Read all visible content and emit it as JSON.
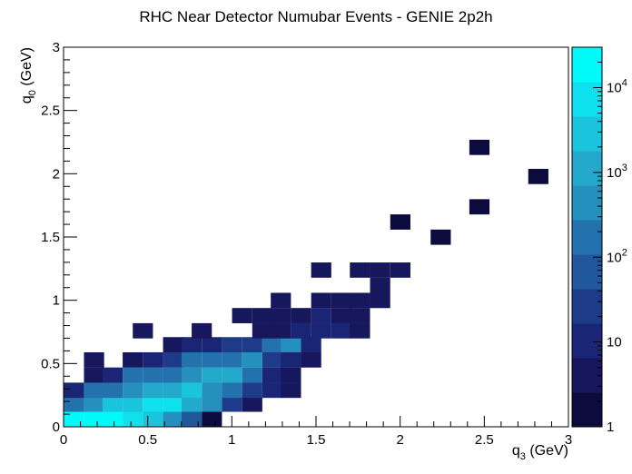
{
  "chart_data": {
    "type": "heatmap",
    "title": "RHC Near Detector Numubar Events - GENIE 2p2h",
    "xlabel": {
      "main": "q",
      "sub": "3",
      "unit": " (GeV)"
    },
    "ylabel": {
      "main": "q",
      "sub": "0",
      "unit": " (GeV)"
    },
    "xlim": [
      0,
      3
    ],
    "ylim": [
      0,
      3
    ],
    "bin_width": [
      0.1176,
      0.1176
    ],
    "grid": false,
    "x_ticks": [
      {
        "value": 0,
        "label": "0"
      },
      {
        "value": 0.5,
        "label": "0.5"
      },
      {
        "value": 1,
        "label": "1"
      },
      {
        "value": 1.5,
        "label": "1.5"
      },
      {
        "value": 2,
        "label": "2"
      },
      {
        "value": 2.5,
        "label": "2.5"
      },
      {
        "value": 3,
        "label": "3"
      }
    ],
    "y_ticks": [
      {
        "value": 0,
        "label": "0"
      },
      {
        "value": 0.5,
        "label": "0.5"
      },
      {
        "value": 1,
        "label": "1"
      },
      {
        "value": 1.5,
        "label": "1.5"
      },
      {
        "value": 2,
        "label": "2"
      },
      {
        "value": 2.5,
        "label": "2.5"
      },
      {
        "value": 3,
        "label": "3"
      }
    ],
    "colorbar": {
      "scale": "log",
      "range": [
        1,
        30000
      ],
      "ticks": [
        {
          "value": 1,
          "base": "1",
          "exp": ""
        },
        {
          "value": 10,
          "base": "10",
          "exp": ""
        },
        {
          "value": 100,
          "base": "10",
          "exp": "2"
        },
        {
          "value": 1000,
          "base": "10",
          "exp": "3"
        },
        {
          "value": 10000,
          "base": "10",
          "exp": "4"
        }
      ],
      "colors": [
        "#0b0b3d",
        "#17175d",
        "#1a2576",
        "#1e3b8a",
        "#21579c",
        "#2372ad",
        "#2590be",
        "#22a9cc",
        "#1ac4dd",
        "#0fe0ee",
        "#00fafa"
      ]
    },
    "cells": [
      {
        "x": 0.06,
        "y": 0.06,
        "v": 30000
      },
      {
        "x": 0.18,
        "y": 0.06,
        "v": 12000
      },
      {
        "x": 0.29,
        "y": 0.06,
        "v": 12000
      },
      {
        "x": 0.41,
        "y": 0.06,
        "v": 10000
      },
      {
        "x": 0.53,
        "y": 0.06,
        "v": 2500
      },
      {
        "x": 0.65,
        "y": 0.06,
        "v": 600
      },
      {
        "x": 0.76,
        "y": 0.06,
        "v": 100
      },
      {
        "x": 0.88,
        "y": 0.06,
        "v": 2
      },
      {
        "x": 0.06,
        "y": 0.18,
        "v": 200
      },
      {
        "x": 0.18,
        "y": 0.18,
        "v": 600
      },
      {
        "x": 0.29,
        "y": 0.18,
        "v": 2000
      },
      {
        "x": 0.41,
        "y": 0.18,
        "v": 3000
      },
      {
        "x": 0.53,
        "y": 0.18,
        "v": 6000
      },
      {
        "x": 0.65,
        "y": 0.18,
        "v": 5000
      },
      {
        "x": 0.76,
        "y": 0.18,
        "v": 1500
      },
      {
        "x": 0.88,
        "y": 0.18,
        "v": 300
      },
      {
        "x": 1.0,
        "y": 0.18,
        "v": 20
      },
      {
        "x": 1.12,
        "y": 0.18,
        "v": 3
      },
      {
        "x": 0.06,
        "y": 0.29,
        "v": 10
      },
      {
        "x": 0.18,
        "y": 0.29,
        "v": 120
      },
      {
        "x": 0.29,
        "y": 0.29,
        "v": 250
      },
      {
        "x": 0.41,
        "y": 0.29,
        "v": 500
      },
      {
        "x": 0.53,
        "y": 0.29,
        "v": 1200
      },
      {
        "x": 0.65,
        "y": 0.29,
        "v": 1200
      },
      {
        "x": 0.76,
        "y": 0.29,
        "v": 2200
      },
      {
        "x": 0.88,
        "y": 0.29,
        "v": 400
      },
      {
        "x": 1.0,
        "y": 0.29,
        "v": 150
      },
      {
        "x": 1.12,
        "y": 0.29,
        "v": 40
      },
      {
        "x": 1.24,
        "y": 0.29,
        "v": 10
      },
      {
        "x": 1.35,
        "y": 0.29,
        "v": 5
      },
      {
        "x": 0.18,
        "y": 0.41,
        "v": 5
      },
      {
        "x": 0.29,
        "y": 0.41,
        "v": 12
      },
      {
        "x": 0.41,
        "y": 0.41,
        "v": 120
      },
      {
        "x": 0.53,
        "y": 0.41,
        "v": 250
      },
      {
        "x": 0.65,
        "y": 0.41,
        "v": 250
      },
      {
        "x": 0.76,
        "y": 0.41,
        "v": 400
      },
      {
        "x": 0.88,
        "y": 0.41,
        "v": 1500
      },
      {
        "x": 1.0,
        "y": 0.41,
        "v": 1500
      },
      {
        "x": 1.12,
        "y": 0.41,
        "v": 250
      },
      {
        "x": 1.24,
        "y": 0.41,
        "v": 12
      },
      {
        "x": 1.35,
        "y": 0.41,
        "v": 5
      },
      {
        "x": 0.18,
        "y": 0.53,
        "v": 5
      },
      {
        "x": 0.41,
        "y": 0.53,
        "v": 5
      },
      {
        "x": 0.53,
        "y": 0.53,
        "v": 12
      },
      {
        "x": 0.65,
        "y": 0.53,
        "v": 40
      },
      {
        "x": 0.76,
        "y": 0.53,
        "v": 120
      },
      {
        "x": 0.88,
        "y": 0.53,
        "v": 250
      },
      {
        "x": 1.0,
        "y": 0.53,
        "v": 250
      },
      {
        "x": 1.12,
        "y": 0.53,
        "v": 400
      },
      {
        "x": 1.24,
        "y": 0.53,
        "v": 40
      },
      {
        "x": 1.35,
        "y": 0.53,
        "v": 12
      },
      {
        "x": 1.47,
        "y": 0.53,
        "v": 5
      },
      {
        "x": 0.65,
        "y": 0.65,
        "v": 5
      },
      {
        "x": 0.76,
        "y": 0.65,
        "v": 12
      },
      {
        "x": 0.88,
        "y": 0.65,
        "v": 12
      },
      {
        "x": 1.0,
        "y": 0.65,
        "v": 40
      },
      {
        "x": 1.12,
        "y": 0.65,
        "v": 40
      },
      {
        "x": 1.24,
        "y": 0.65,
        "v": 250
      },
      {
        "x": 1.35,
        "y": 0.65,
        "v": 400
      },
      {
        "x": 1.47,
        "y": 0.65,
        "v": 12
      },
      {
        "x": 0.47,
        "y": 0.76,
        "v": 3
      },
      {
        "x": 0.82,
        "y": 0.76,
        "v": 3
      },
      {
        "x": 1.18,
        "y": 0.76,
        "v": 5
      },
      {
        "x": 1.29,
        "y": 0.76,
        "v": 5
      },
      {
        "x": 1.41,
        "y": 0.76,
        "v": 12
      },
      {
        "x": 1.53,
        "y": 0.76,
        "v": 12
      },
      {
        "x": 1.65,
        "y": 0.76,
        "v": 12
      },
      {
        "x": 1.76,
        "y": 0.76,
        "v": 5
      },
      {
        "x": 1.06,
        "y": 0.88,
        "v": 5
      },
      {
        "x": 1.18,
        "y": 0.88,
        "v": 5
      },
      {
        "x": 1.29,
        "y": 0.88,
        "v": 5
      },
      {
        "x": 1.41,
        "y": 0.88,
        "v": 5
      },
      {
        "x": 1.53,
        "y": 0.88,
        "v": 12
      },
      {
        "x": 1.65,
        "y": 0.88,
        "v": 5
      },
      {
        "x": 1.76,
        "y": 0.88,
        "v": 5
      },
      {
        "x": 1.29,
        "y": 1.0,
        "v": 3
      },
      {
        "x": 1.53,
        "y": 1.0,
        "v": 5
      },
      {
        "x": 1.65,
        "y": 1.0,
        "v": 5
      },
      {
        "x": 1.76,
        "y": 1.0,
        "v": 5
      },
      {
        "x": 1.88,
        "y": 1.0,
        "v": 5
      },
      {
        "x": 1.88,
        "y": 1.12,
        "v": 3
      },
      {
        "x": 1.53,
        "y": 1.24,
        "v": 3
      },
      {
        "x": 1.76,
        "y": 1.24,
        "v": 3
      },
      {
        "x": 1.88,
        "y": 1.24,
        "v": 3
      },
      {
        "x": 2.0,
        "y": 1.24,
        "v": 3
      },
      {
        "x": 2.24,
        "y": 1.5,
        "v": 2
      },
      {
        "x": 2.0,
        "y": 1.62,
        "v": 2
      },
      {
        "x": 2.47,
        "y": 1.74,
        "v": 2
      },
      {
        "x": 2.82,
        "y": 1.98,
        "v": 2
      },
      {
        "x": 2.47,
        "y": 2.21,
        "v": 2
      }
    ]
  }
}
